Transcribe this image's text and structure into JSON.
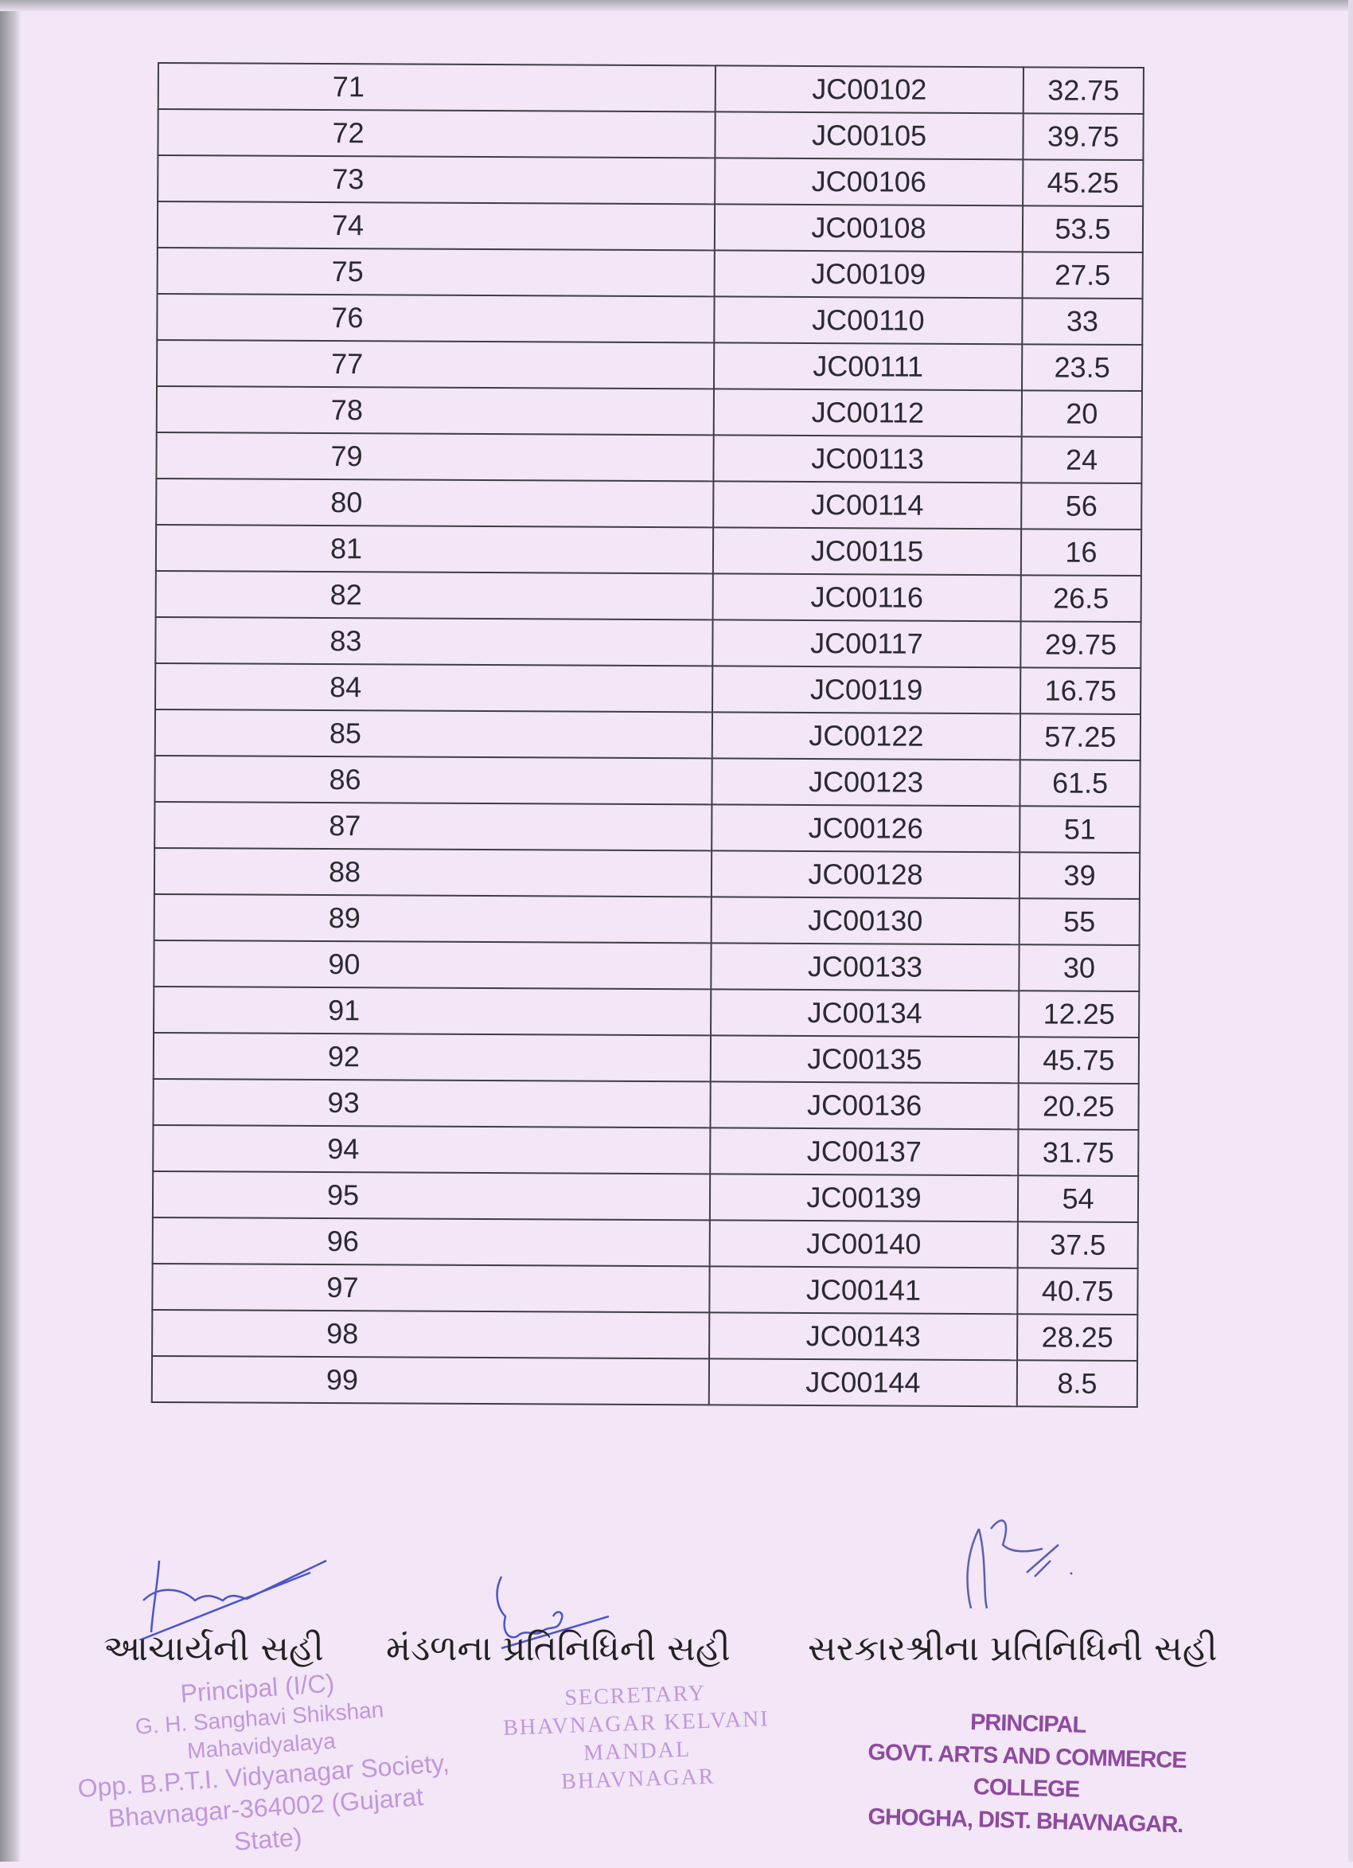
{
  "table": {
    "rows": [
      {
        "sr": "71",
        "code": "JC00102",
        "marks": "32.75"
      },
      {
        "sr": "72",
        "code": "JC00105",
        "marks": "39.75"
      },
      {
        "sr": "73",
        "code": "JC00106",
        "marks": "45.25"
      },
      {
        "sr": "74",
        "code": "JC00108",
        "marks": "53.5"
      },
      {
        "sr": "75",
        "code": "JC00109",
        "marks": "27.5"
      },
      {
        "sr": "76",
        "code": "JC00110",
        "marks": "33"
      },
      {
        "sr": "77",
        "code": "JC00111",
        "marks": "23.5"
      },
      {
        "sr": "78",
        "code": "JC00112",
        "marks": "20"
      },
      {
        "sr": "79",
        "code": "JC00113",
        "marks": "24"
      },
      {
        "sr": "80",
        "code": "JC00114",
        "marks": "56"
      },
      {
        "sr": "81",
        "code": "JC00115",
        "marks": "16"
      },
      {
        "sr": "82",
        "code": "JC00116",
        "marks": "26.5"
      },
      {
        "sr": "83",
        "code": "JC00117",
        "marks": "29.75"
      },
      {
        "sr": "84",
        "code": "JC00119",
        "marks": "16.75"
      },
      {
        "sr": "85",
        "code": "JC00122",
        "marks": "57.25"
      },
      {
        "sr": "86",
        "code": "JC00123",
        "marks": "61.5"
      },
      {
        "sr": "87",
        "code": "JC00126",
        "marks": "51"
      },
      {
        "sr": "88",
        "code": "JC00128",
        "marks": "39"
      },
      {
        "sr": "89",
        "code": "JC00130",
        "marks": "55"
      },
      {
        "sr": "90",
        "code": "JC00133",
        "marks": "30"
      },
      {
        "sr": "91",
        "code": "JC00134",
        "marks": "12.25"
      },
      {
        "sr": "92",
        "code": "JC00135",
        "marks": "45.75"
      },
      {
        "sr": "93",
        "code": "JC00136",
        "marks": "20.25"
      },
      {
        "sr": "94",
        "code": "JC00137",
        "marks": "31.75"
      },
      {
        "sr": "95",
        "code": "JC00139",
        "marks": "54"
      },
      {
        "sr": "96",
        "code": "JC00140",
        "marks": "37.5"
      },
      {
        "sr": "97",
        "code": "JC00141",
        "marks": "40.75"
      },
      {
        "sr": "98",
        "code": "JC00143",
        "marks": "28.25"
      },
      {
        "sr": "99",
        "code": "JC00144",
        "marks": "8.5"
      }
    ]
  },
  "signatures": {
    "principal_label": "આચાર્યની સહી",
    "mandal_label": "મંડળના પ્રતિનિધિની સહી",
    "govt_label": "સરકારશ્રીના પ્રતિનિધિની સહી"
  },
  "stamps": {
    "left": [
      "Principal (I/C)",
      "G. H. Sanghavi Shikshan Mahavidyalaya",
      "Opp. B.P.T.I. Vidyanagar Society,",
      "Bhavnagar-364002 (Gujarat State)"
    ],
    "center": [
      "SECRETARY",
      "BHAVNAGAR KELVANI MANDAL",
      "BHAVNAGAR"
    ],
    "right": [
      "PRINCIPAL",
      "GOVT. ARTS AND COMMERCE COLLEGE",
      "GHOGHA, DIST. BHAVNAGAR."
    ]
  },
  "colors": {
    "paper": "#f2e6f7",
    "stamp_ink": "#b98ad6",
    "signature_ink": "#4a55c8"
  }
}
